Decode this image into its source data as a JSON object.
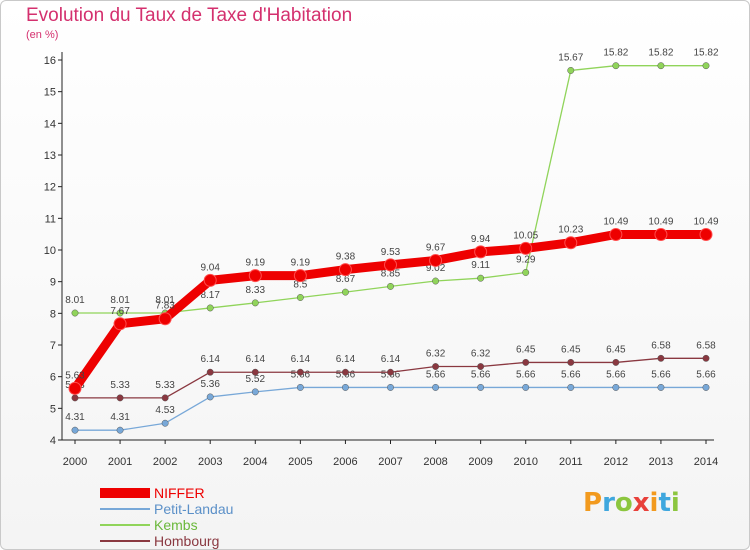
{
  "header": {
    "title": "Evolution du Taux de Taxe d'Habitation",
    "subtitle": "(en %)"
  },
  "logo": {
    "text": "Proxiti",
    "letters": [
      "P",
      "r",
      "o",
      "x",
      "i",
      "t",
      "i"
    ]
  },
  "chart_data": {
    "type": "line",
    "x": [
      "2000",
      "2001",
      "2002",
      "2003",
      "2004",
      "2005",
      "2006",
      "2007",
      "2008",
      "2009",
      "2010",
      "2011",
      "2012",
      "2013",
      "2014"
    ],
    "ylim": [
      4,
      16
    ],
    "yticks": [
      "4",
      "5",
      "6",
      "7",
      "8",
      "9",
      "10",
      "11",
      "12",
      "13",
      "14",
      "15",
      "16"
    ],
    "grid": false,
    "legend": "bottom-left",
    "series": [
      {
        "name": "Kembs",
        "color": "#90d45a",
        "values": [
          8.01,
          8.01,
          8.01,
          8.17,
          8.33,
          8.5,
          8.67,
          8.85,
          9.02,
          9.11,
          9.29,
          15.67,
          15.82,
          15.82,
          15.82
        ],
        "labels": [
          "8.01",
          "8.01",
          "8.01",
          "8.17",
          "8.33",
          "8.5",
          "8.67",
          "8.85",
          "9.02",
          "9.11",
          "9.29",
          "15.67",
          "15.82",
          "15.82",
          "15.82"
        ]
      },
      {
        "name": "Petit-Landau",
        "color": "#78a8d8",
        "values": [
          4.31,
          4.31,
          4.53,
          5.36,
          5.52,
          5.66,
          5.66,
          5.66,
          5.66,
          5.66,
          5.66,
          5.66,
          5.66,
          5.66,
          5.66
        ],
        "labels": [
          "4.31",
          "4.31",
          "4.53",
          "5.36",
          "5.52",
          "5.66",
          "5.66",
          "5.66",
          "5.66",
          "5.66",
          "5.66",
          "5.66",
          "5.66",
          "5.66",
          "5.66"
        ]
      },
      {
        "name": "Hombourg",
        "color": "#8a3840",
        "values": [
          5.33,
          5.33,
          5.33,
          6.14,
          6.14,
          6.14,
          6.14,
          6.14,
          6.32,
          6.32,
          6.45,
          6.45,
          6.45,
          6.58,
          6.58
        ],
        "labels": [
          "5.33",
          "5.33",
          "5.33",
          "6.14",
          "6.14",
          "6.14",
          "6.14",
          "6.14",
          "6.32",
          "6.32",
          "6.45",
          "6.45",
          "6.45",
          "6.58",
          "6.58"
        ]
      },
      {
        "name": "NIFFER",
        "color": "#ee0000",
        "values": [
          5.63,
          7.67,
          7.83,
          9.04,
          9.19,
          9.19,
          9.38,
          9.53,
          9.67,
          9.94,
          10.05,
          10.23,
          10.49,
          10.49,
          10.49
        ],
        "labels": [
          "5.63",
          "7.67",
          "7.83",
          "9.04",
          "9.19",
          "9.19",
          "9.38",
          "9.53",
          "9.67",
          "9.94",
          "10.05",
          "10.23",
          "10.49",
          "10.49",
          "10.49"
        ]
      }
    ],
    "legend_entries": [
      {
        "name": "NIFFER",
        "color": "#ee0000"
      },
      {
        "name": "Petit-Landau",
        "color": "#78a8d8"
      },
      {
        "name": "Kembs",
        "color": "#90d45a"
      },
      {
        "name": "Hombourg",
        "color": "#8a3840"
      }
    ]
  }
}
